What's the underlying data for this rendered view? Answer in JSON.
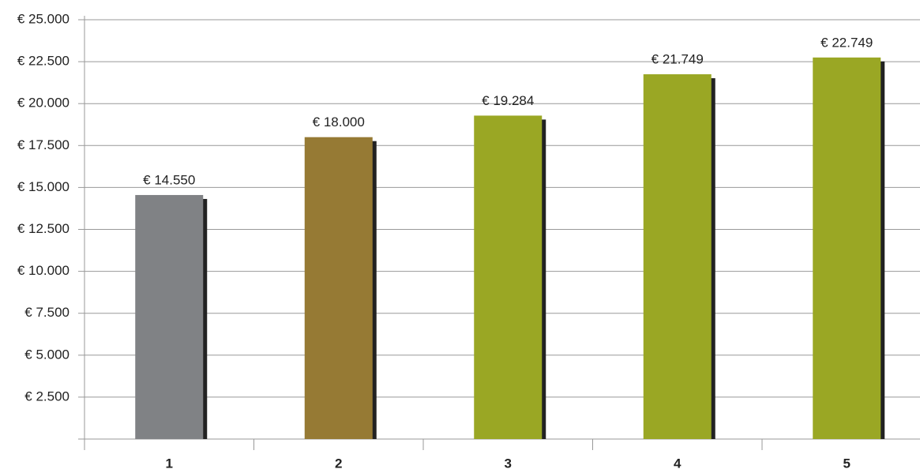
{
  "chart_data": {
    "type": "bar",
    "categories": [
      "1",
      "2",
      "3",
      "4",
      "5"
    ],
    "values": [
      14550,
      18000,
      19284,
      21749,
      22749
    ],
    "value_labels": [
      "€ 14.550",
      "€ 18.000",
      "€ 19.284",
      "€ 21.749",
      "€ 22.749"
    ],
    "colors": [
      "#808285",
      "#967a34",
      "#9aa724",
      "#9aa724",
      "#9aa724"
    ],
    "ylim": [
      0,
      25000
    ],
    "yticks": [
      {
        "value": 2500,
        "label": "€ 2.500"
      },
      {
        "value": 5000,
        "label": "€ 5.000"
      },
      {
        "value": 7500,
        "label": "€ 7.500"
      },
      {
        "value": 10000,
        "label": "€ 10.000"
      },
      {
        "value": 12500,
        "label": "€ 12.500"
      },
      {
        "value": 15000,
        "label": "€ 15.000"
      },
      {
        "value": 17500,
        "label": "€ 17.500"
      },
      {
        "value": 20000,
        "label": "€ 20.000"
      },
      {
        "value": 22500,
        "label": "€ 22.500"
      },
      {
        "value": 25000,
        "label": "€ 25.000"
      }
    ],
    "grid": true
  }
}
